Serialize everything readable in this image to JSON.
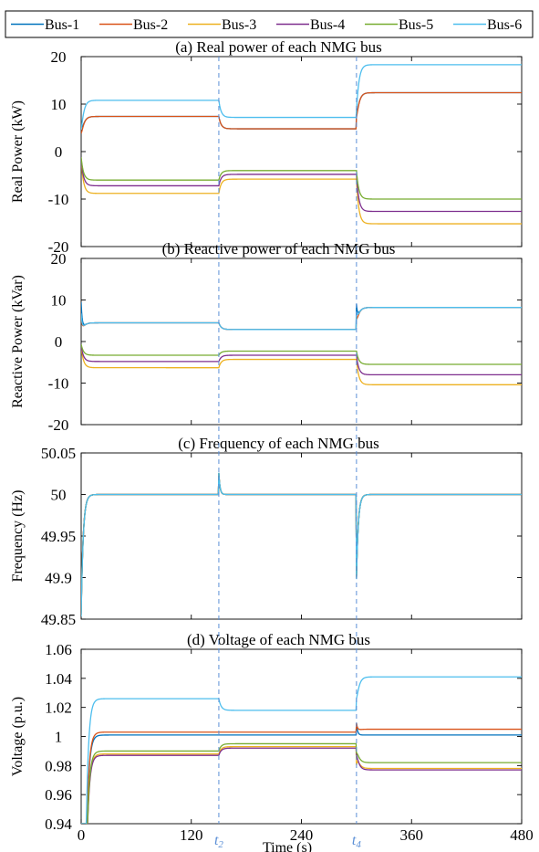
{
  "legend": [
    "Bus-1",
    "Bus-2",
    "Bus-3",
    "Bus-4",
    "Bus-5",
    "Bus-6"
  ],
  "colors": [
    "#0072BD",
    "#D95319",
    "#EDB120",
    "#7E2F8E",
    "#77AC30",
    "#4DBEEE"
  ],
  "marker_color": "#5B8FD6",
  "x_axis": {
    "label": "Time (s)",
    "range": [
      0,
      480
    ],
    "ticks": [
      0,
      120,
      240,
      360,
      480
    ],
    "markers": [
      {
        "x": 150,
        "label": "t",
        "sub": "2"
      },
      {
        "x": 300,
        "label": "t",
        "sub": "4"
      }
    ]
  },
  "chart_data": [
    {
      "type": "line",
      "title": "(a) Real power of each NMG bus",
      "ylabel": "Real Power (kW)",
      "ylim": [
        -20,
        20
      ],
      "yticks": [
        20,
        10,
        0,
        -10,
        -20
      ],
      "grid": false,
      "series": [
        {
          "name": "Bus-1",
          "values": [
            7.4,
            4.8,
            12.4
          ],
          "transients": [
            [
              0,
              12
            ],
            [
              300,
              16
            ]
          ]
        },
        {
          "name": "Bus-2",
          "values": [
            7.4,
            4.8,
            12.4
          ],
          "transients": [
            [
              0,
              10
            ],
            [
              300,
              15
            ]
          ]
        },
        {
          "name": "Bus-3",
          "values": [
            -8.8,
            -5.8,
            -15.2
          ],
          "transients": []
        },
        {
          "name": "Bus-4",
          "values": [
            -7.2,
            -4.8,
            -12.6
          ],
          "transients": []
        },
        {
          "name": "Bus-5",
          "values": [
            -6.0,
            -4.0,
            -10.0
          ],
          "transients": []
        },
        {
          "name": "Bus-6",
          "values": [
            10.8,
            7.2,
            18.3
          ],
          "transients": [
            [
              0,
              13.5
            ],
            [
              300,
              20
            ]
          ]
        }
      ]
    },
    {
      "type": "line",
      "title": "(b) Reactive power of each NMG bus",
      "ylabel": "Reactive Power (kVar)",
      "ylim": [
        -20,
        20
      ],
      "yticks": [
        20,
        10,
        0,
        -10,
        -20
      ],
      "grid": false,
      "series": [
        {
          "name": "Bus-1",
          "values": [
            4.5,
            2.9,
            8.2
          ],
          "transients": [
            [
              0,
              14
            ],
            [
              300,
              15
            ]
          ]
        },
        {
          "name": "Bus-2",
          "values": [
            4.5,
            2.9,
            8.2
          ],
          "transients": [
            [
              0,
              10
            ],
            [
              300,
              11
            ]
          ]
        },
        {
          "name": "Bus-3",
          "values": [
            -6.3,
            -4.3,
            -10.4
          ],
          "transients": []
        },
        {
          "name": "Bus-4",
          "values": [
            -4.8,
            -3.3,
            -8.0
          ],
          "transients": []
        },
        {
          "name": "Bus-5",
          "values": [
            -3.3,
            -2.3,
            -5.5
          ],
          "transients": []
        },
        {
          "name": "Bus-6",
          "values": [
            4.5,
            2.9,
            8.2
          ],
          "transients": [
            [
              0,
              11
            ],
            [
              300,
              13
            ]
          ]
        }
      ]
    },
    {
      "type": "line",
      "title": "(c) Frequency of each NMG bus",
      "ylabel": "Frequency (Hz)",
      "ylim": [
        49.85,
        50.05
      ],
      "yticks": [
        50.05,
        50,
        49.95,
        49.9,
        49.85
      ],
      "grid": false,
      "series": [
        {
          "name": "Bus-1",
          "values": [
            50,
            50,
            50
          ]
        },
        {
          "name": "Bus-2",
          "values": [
            50,
            50,
            50
          ]
        },
        {
          "name": "Bus-3",
          "values": [
            50,
            50,
            50
          ]
        },
        {
          "name": "Bus-4",
          "values": [
            50,
            50,
            50
          ]
        },
        {
          "name": "Bus-5",
          "values": [
            50,
            50,
            50
          ]
        },
        {
          "name": "Bus-6",
          "values": [
            50,
            50,
            50
          ]
        }
      ],
      "events": [
        {
          "t": 0,
          "dev": -0.14,
          "tau": 2.2
        },
        {
          "t": 150,
          "dev": 0.025,
          "tau": 1.3
        },
        {
          "t": 300,
          "dev": -0.097,
          "tau": 2.0
        }
      ]
    },
    {
      "type": "line",
      "title": "(d) Voltage of each NMG bus",
      "ylabel": "Voltage (p.u.)",
      "ylim": [
        0.94,
        1.06
      ],
      "yticks": [
        1.06,
        1.04,
        1.02,
        1,
        0.98,
        0.96,
        0.94
      ],
      "grid": false,
      "series": [
        {
          "name": "Bus-1",
          "values": [
            1.001,
            1.001,
            1.001
          ],
          "transients": [
            [
              300,
              1.01
            ]
          ]
        },
        {
          "name": "Bus-2",
          "values": [
            1.003,
            1.003,
            1.005
          ],
          "transients": [
            [
              300,
              1.012
            ]
          ]
        },
        {
          "name": "Bus-3",
          "values": [
            0.988,
            0.993,
            0.978
          ],
          "transients": [
            [
              300,
              0.964
            ]
          ]
        },
        {
          "name": "Bus-4",
          "values": [
            0.987,
            0.992,
            0.977
          ],
          "transients": [
            [
              300,
              0.972
            ]
          ]
        },
        {
          "name": "Bus-5",
          "values": [
            0.99,
            0.995,
            0.982
          ],
          "transients": [
            [
              300,
              0.975
            ]
          ]
        },
        {
          "name": "Bus-6",
          "values": [
            1.026,
            1.018,
            1.041
          ],
          "transients": [
            [
              300,
              1.05
            ]
          ]
        }
      ]
    }
  ]
}
